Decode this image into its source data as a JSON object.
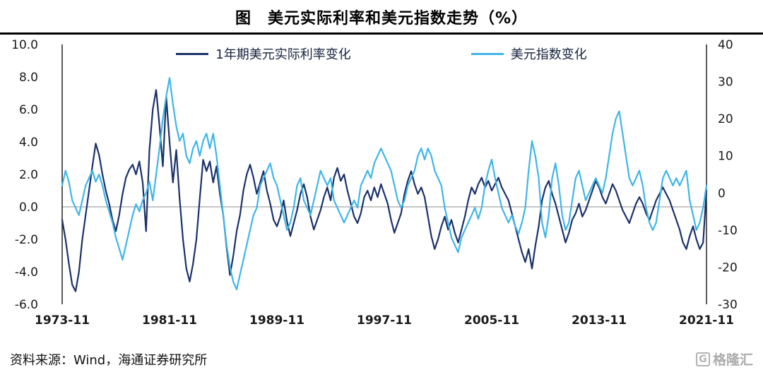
{
  "title": "图　美元实际利率和美元指数走势（%）",
  "footer": {
    "source": "资料来源：Wind，海通证券研究所",
    "logo_text": "格隆汇"
  },
  "chart_data": {
    "type": "line",
    "title": "图 美元实际利率和美元指数走势（%）",
    "grid": "off",
    "legend_position": "top-center",
    "x_tick_labels": [
      "1973-11",
      "1981-11",
      "1989-11",
      "1997-11",
      "2005-11",
      "2013-11",
      "2021-11"
    ],
    "x_tick_indices": [
      0,
      32,
      64,
      96,
      128,
      160,
      192
    ],
    "left_axis": {
      "min": -6,
      "max": 10,
      "ticks": [
        "10.0",
        "8.0",
        "6.0",
        "4.0",
        "2.0",
        "0.0",
        "-2.0",
        "-4.0",
        "-6.0"
      ]
    },
    "right_axis": {
      "min": -30,
      "max": 40,
      "ticks": [
        "40",
        "30",
        "20",
        "10",
        "0",
        "-10",
        "-20",
        "-30"
      ]
    },
    "zero_line_color": "#8c8c8c",
    "series": [
      {
        "name": "1年期美元实际利率变化",
        "axis": "left",
        "color": "#1b3169",
        "values": [
          -0.8,
          -2.0,
          -3.5,
          -4.8,
          -5.2,
          -4.0,
          -2.0,
          -0.5,
          1.0,
          2.5,
          3.9,
          3.2,
          2.0,
          1.0,
          0.2,
          -0.8,
          -1.5,
          -0.5,
          0.8,
          1.8,
          2.3,
          2.6,
          2.0,
          2.8,
          1.5,
          -1.5,
          3.5,
          6.0,
          7.2,
          5.0,
          2.5,
          6.8,
          4.0,
          1.5,
          3.5,
          0.5,
          -2.0,
          -3.8,
          -4.6,
          -3.5,
          -2.0,
          0.5,
          2.9,
          2.2,
          2.8,
          1.5,
          2.5,
          0.8,
          -0.5,
          -2.5,
          -4.2,
          -3.0,
          -1.5,
          -0.5,
          1.0,
          2.0,
          2.6,
          1.8,
          0.8,
          1.5,
          2.2,
          1.0,
          0.2,
          -0.8,
          -1.2,
          -0.6,
          0.4,
          -0.9,
          -1.8,
          -1.0,
          -0.2,
          0.8,
          1.4,
          0.6,
          -0.6,
          -1.4,
          -0.8,
          -0.2,
          0.6,
          1.2,
          0.4,
          1.8,
          2.4,
          1.6,
          2.0,
          1.0,
          0.2,
          -0.6,
          -1.0,
          -0.4,
          0.6,
          1.0,
          0.4,
          1.2,
          0.6,
          1.4,
          0.8,
          0.2,
          -0.8,
          -1.6,
          -1.0,
          -0.4,
          0.8,
          1.6,
          2.2,
          1.4,
          0.8,
          1.2,
          0.6,
          -0.6,
          -1.8,
          -2.6,
          -2.0,
          -1.2,
          -0.6,
          -1.4,
          -0.8,
          -1.6,
          -2.2,
          -1.4,
          -0.6,
          0.4,
          1.2,
          0.8,
          1.4,
          1.8,
          1.2,
          1.6,
          1.0,
          1.4,
          1.8,
          1.2,
          0.8,
          0.4,
          -0.4,
          -1.2,
          -2.0,
          -2.8,
          -3.4,
          -2.6,
          -3.8,
          -2.4,
          -1.2,
          0.4,
          1.2,
          1.6,
          0.8,
          0.2,
          -0.6,
          -1.4,
          -2.2,
          -1.6,
          -0.8,
          -0.4,
          0.2,
          -0.6,
          -0.2,
          0.4,
          1.0,
          1.6,
          1.2,
          0.6,
          0.2,
          0.8,
          1.4,
          1.0,
          0.4,
          -0.2,
          -0.6,
          -1.0,
          -0.4,
          0.2,
          0.6,
          0.2,
          -0.4,
          -0.8,
          -0.2,
          0.4,
          0.8,
          1.2,
          0.8,
          0.4,
          -0.2,
          -0.8,
          -1.4,
          -2.2,
          -2.6,
          -1.8,
          -1.2,
          -2.0,
          -2.6,
          -2.2,
          1.0
        ]
      },
      {
        "name": "美元指数变化",
        "axis": "right",
        "color": "#3fb6e8",
        "values": [
          2,
          6,
          3,
          -2,
          -4,
          -6,
          -2,
          2,
          4,
          6,
          3,
          5,
          2,
          -2,
          -5,
          -8,
          -12,
          -15,
          -18,
          -14,
          -10,
          -6,
          -3,
          -5,
          -2,
          0,
          3,
          -2,
          5,
          12,
          20,
          26,
          31,
          24,
          18,
          14,
          16,
          10,
          8,
          12,
          14,
          10,
          14,
          16,
          12,
          16,
          10,
          2,
          -6,
          -14,
          -20,
          -24,
          -26,
          -22,
          -18,
          -14,
          -10,
          -6,
          -4,
          2,
          4,
          6,
          8,
          4,
          2,
          -2,
          -6,
          -10,
          -8,
          -4,
          2,
          4,
          -2,
          -4,
          -6,
          -2,
          2,
          6,
          4,
          2,
          4,
          -2,
          -4,
          -6,
          -8,
          -6,
          -4,
          -2,
          -4,
          2,
          4,
          6,
          4,
          8,
          10,
          12,
          10,
          8,
          6,
          2,
          -2,
          -4,
          -2,
          2,
          4,
          6,
          10,
          12,
          9,
          12,
          10,
          6,
          4,
          2,
          -4,
          -8,
          -12,
          -14,
          -16,
          -12,
          -10,
          -8,
          -6,
          -4,
          -7,
          -4,
          2,
          6,
          9,
          4,
          0,
          -4,
          -6,
          -8,
          -6,
          -9,
          -11,
          -8,
          -4,
          6,
          14,
          10,
          4,
          -8,
          -12,
          -6,
          4,
          8,
          2,
          -6,
          -10,
          -8,
          -2,
          4,
          6,
          2,
          -2,
          0,
          2,
          4,
          2,
          0,
          4,
          10,
          16,
          20,
          22,
          16,
          10,
          4,
          2,
          4,
          6,
          2,
          -4,
          -8,
          -10,
          -8,
          -2,
          4,
          6,
          4,
          2,
          4,
          2,
          4,
          6,
          -2,
          -6,
          -10,
          -8,
          -4,
          2
        ]
      }
    ]
  }
}
